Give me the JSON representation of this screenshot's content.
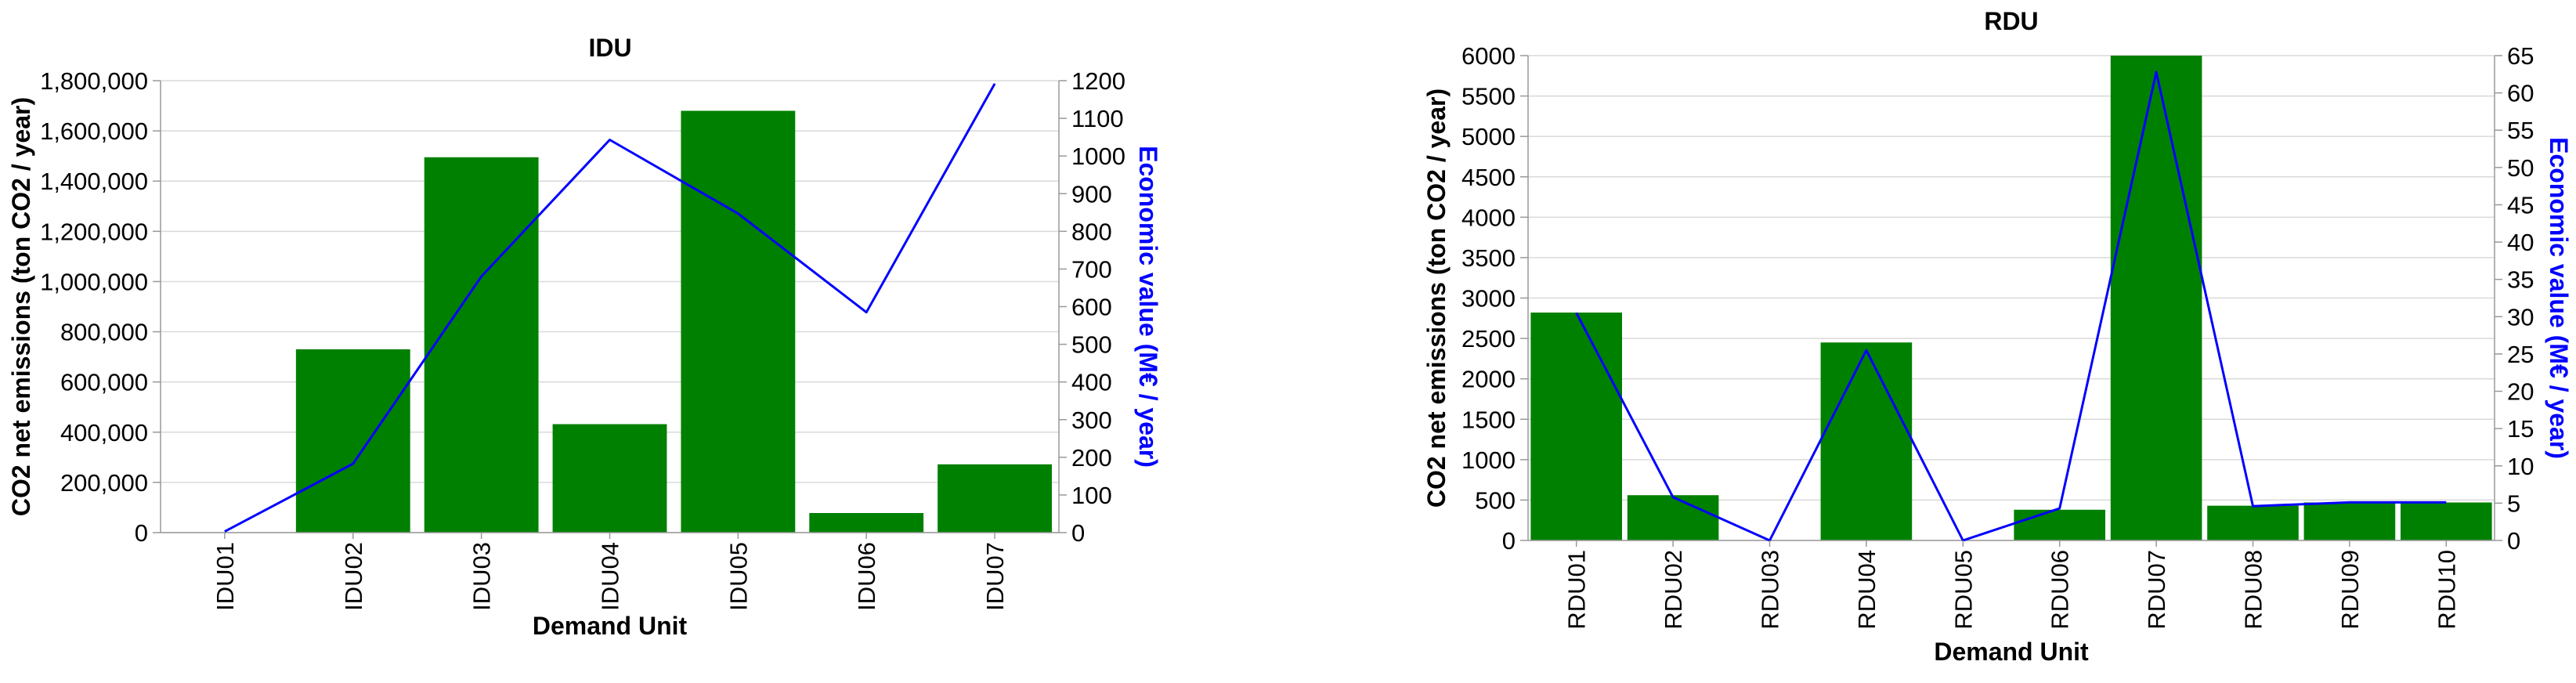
{
  "chart_data": [
    {
      "type": "bar",
      "title": "IDU",
      "xlabel": "Demand Unit",
      "ylabel": "CO2 net emissions (ton CO2 / year)",
      "y2label": "Economic value (M€ / year)",
      "categories": [
        "IDU01",
        "IDU02",
        "IDU03",
        "IDU04",
        "IDU05",
        "IDU06",
        "IDU07"
      ],
      "series": [
        {
          "kind": "bar",
          "axis": "left",
          "values": [
            0,
            730000,
            1495000,
            432000,
            1680000,
            78000,
            272000
          ]
        },
        {
          "kind": "line",
          "axis": "right",
          "values": [
            3,
            183,
            680,
            1043,
            847,
            585,
            1192
          ]
        }
      ],
      "ylim": [
        0,
        1800000
      ],
      "y2lim": [
        0,
        1200
      ],
      "yticks": [
        "0",
        "200,000",
        "400,000",
        "600,000",
        "800,000",
        "1,000,000",
        "1,200,000",
        "1,400,000",
        "1,600,000",
        "1,800,000"
      ],
      "y2ticks": [
        "0",
        "100",
        "200",
        "300",
        "400",
        "500",
        "600",
        "700",
        "800",
        "900",
        "1000",
        "1100",
        "1200"
      ],
      "grid": true,
      "colors": {
        "bar": "#008000",
        "line": "#0000ff",
        "grid": "#d9d9d9",
        "axis": "#999999"
      }
    },
    {
      "type": "bar",
      "title": "RDU",
      "xlabel": "Demand Unit",
      "ylabel": "CO2 net emissions (ton CO2 / year)",
      "y2label": "Economic value (M€ / year)",
      "categories": [
        "RDU01",
        "RDU02",
        "RDU03",
        "RDU04",
        "RDU05",
        "RDU06",
        "RDU07",
        "RDU08",
        "RDU09",
        "RDU10"
      ],
      "series": [
        {
          "kind": "bar",
          "axis": "left",
          "values": [
            2820,
            560,
            0,
            2450,
            0,
            380,
            6000,
            430,
            470,
            470
          ]
        },
        {
          "kind": "line",
          "axis": "right",
          "values": [
            30.5,
            5.8,
            0,
            25.5,
            0,
            4.3,
            62.8,
            4.6,
            5.1,
            5.1
          ]
        }
      ],
      "ylim": [
        0,
        6000
      ],
      "y2lim": [
        0,
        65
      ],
      "yticks": [
        "0",
        "500",
        "1000",
        "1500",
        "2000",
        "2500",
        "3000",
        "3500",
        "4000",
        "4500",
        "5000",
        "5500",
        "6000"
      ],
      "y2ticks": [
        "0",
        "5",
        "10",
        "15",
        "20",
        "25",
        "30",
        "35",
        "40",
        "45",
        "50",
        "55",
        "60",
        "65"
      ],
      "grid": true,
      "colors": {
        "bar": "#008000",
        "line": "#0000ff",
        "grid": "#d9d9d9",
        "axis": "#999999"
      }
    }
  ]
}
